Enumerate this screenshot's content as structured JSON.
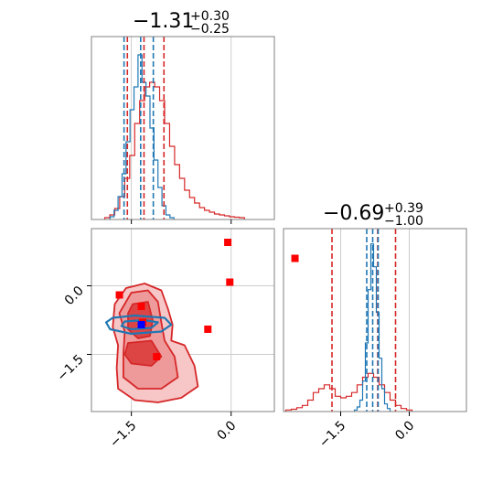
{
  "chart_data": {
    "type": "scatter",
    "subtype": "corner-plot",
    "colors": {
      "red": "#d62728",
      "blue": "#1f77b4",
      "red_fill": "#f2a4a4",
      "red_fill_dark": "#e05252",
      "grid": "#cccccc",
      "frame": "#808080",
      "pink": "#ffb3d1"
    },
    "params": [
      {
        "title_value": "−1.31",
        "title_plus": "+0.30",
        "title_minus": "−0.25",
        "range": [
          -2.1,
          0.65
        ],
        "ticks": [
          -1.5,
          0.0
        ],
        "tick_labels": [
          "−1.5",
          "0.0"
        ]
      },
      {
        "title_value": "−0.69",
        "title_plus": "+0.39",
        "title_minus": "−1.00",
        "range": [
          -2.75,
          1.25
        ],
        "ticks": [
          -1.5,
          0.0
        ],
        "tick_labels": [
          "−1.5",
          "0.0"
        ]
      }
    ],
    "hist1": {
      "red_quantiles": [
        -1.56,
        -1.31,
        -1.01
      ],
      "blue_quantiles": [
        -1.61,
        -1.36,
        -1.17
      ],
      "red_values": [
        0.2,
        0.5,
        1.2,
        2.5,
        4.5,
        7.0,
        10.5,
        13.0,
        14.5,
        15.0,
        14.5,
        13.0,
        10.5,
        8.0,
        6.0,
        4.5,
        3.2,
        2.4,
        1.8,
        1.3,
        1.0,
        0.8,
        0.6,
        0.5,
        0.4,
        0.3,
        0.25,
        0.2
      ],
      "red_start": -1.9,
      "red_step": 0.075,
      "blue_values": [
        0.3,
        1.0,
        2.5,
        5.0,
        8.5,
        12.0,
        14.5,
        18.0,
        15.0,
        13.5,
        10.0,
        6.5,
        3.5,
        1.5,
        0.5,
        0.2
      ],
      "blue_start": -1.82,
      "blue_step": 0.06,
      "ymax": 20
    },
    "hist2": {
      "red_quantiles": [
        -1.69,
        -0.69,
        -0.3
      ],
      "blue_quantiles": [
        -0.93,
        -0.8,
        -0.68
      ],
      "red_values": [
        0.2,
        0.3,
        0.5,
        0.8,
        1.5,
        2.5,
        3.0,
        3.5,
        3.0,
        2.0,
        1.8,
        2.0,
        2.5,
        3.5,
        4.5,
        5.0,
        4.5,
        3.5,
        2.5,
        1.5,
        0.8,
        0.4,
        0.2
      ],
      "red_start": -2.7,
      "red_step": 0.12,
      "blue_values": [
        0.2,
        0.6,
        1.5,
        4.0,
        9.0,
        16.0,
        22.0,
        19.0,
        13.0,
        7.0,
        3.0,
        1.0,
        0.4
      ],
      "blue_start": -1.2,
      "blue_step": 0.06,
      "ymax": 24
    },
    "scatter": {
      "red_markers": [
        [
          -0.05,
          0.95
        ],
        [
          0.96,
          0.6
        ],
        [
          -0.02,
          0.08
        ],
        [
          -1.68,
          -0.2
        ],
        [
          -1.35,
          -0.45
        ],
        [
          -1.33,
          -0.8
        ],
        [
          -0.35,
          -0.95
        ],
        [
          -1.12,
          -1.55
        ]
      ],
      "blue_marker": [
        -1.35,
        -0.85
      ],
      "contours_red": [
        [
          [
            -1.58,
            -0.05
          ],
          [
            -1.3,
            0.05
          ],
          [
            -1.05,
            -0.1
          ],
          [
            -0.95,
            -0.5
          ],
          [
            -0.88,
            -0.85
          ],
          [
            -0.9,
            -1.2
          ],
          [
            -0.7,
            -1.3
          ],
          [
            -0.55,
            -1.75
          ],
          [
            -0.5,
            -2.2
          ],
          [
            -0.75,
            -2.45
          ],
          [
            -1.1,
            -2.55
          ],
          [
            -1.45,
            -2.5
          ],
          [
            -1.7,
            -2.25
          ],
          [
            -1.72,
            -1.8
          ],
          [
            -1.7,
            -1.3
          ],
          [
            -1.78,
            -0.9
          ],
          [
            -1.75,
            -0.4
          ]
        ],
        [
          [
            -1.5,
            -0.15
          ],
          [
            -1.25,
            -0.1
          ],
          [
            -1.1,
            -0.35
          ],
          [
            -1.05,
            -0.8
          ],
          [
            -1.0,
            -1.2
          ],
          [
            -0.85,
            -1.55
          ],
          [
            -0.8,
            -2.0
          ],
          [
            -1.05,
            -2.25
          ],
          [
            -1.4,
            -2.25
          ],
          [
            -1.62,
            -2.0
          ],
          [
            -1.62,
            -1.5
          ],
          [
            -1.6,
            -1.0
          ],
          [
            -1.68,
            -0.6
          ]
        ],
        [
          [
            -1.48,
            -0.4
          ],
          [
            -1.25,
            -0.35
          ],
          [
            -1.18,
            -0.75
          ],
          [
            -1.22,
            -1.1
          ],
          [
            -1.4,
            -1.15
          ],
          [
            -1.55,
            -0.95
          ],
          [
            -1.55,
            -0.6
          ]
        ],
        [
          [
            -1.55,
            -1.25
          ],
          [
            -1.2,
            -1.2
          ],
          [
            -1.05,
            -1.55
          ],
          [
            -1.2,
            -1.75
          ],
          [
            -1.5,
            -1.7
          ],
          [
            -1.6,
            -1.5
          ]
        ]
      ],
      "contour_blue": [
        [
          -1.78,
          -0.7
        ],
        [
          -1.45,
          -0.65
        ],
        [
          -1.0,
          -0.7
        ],
        [
          -0.9,
          -0.85
        ],
        [
          -1.05,
          -1.0
        ],
        [
          -1.5,
          -1.05
        ],
        [
          -1.82,
          -0.95
        ],
        [
          -1.88,
          -0.8
        ]
      ],
      "contour_blue_inner": [
        [
          -1.6,
          -0.78
        ],
        [
          -1.3,
          -0.75
        ],
        [
          -1.1,
          -0.8
        ],
        [
          -1.2,
          -0.92
        ],
        [
          -1.5,
          -0.95
        ],
        [
          -1.65,
          -0.88
        ]
      ]
    }
  }
}
